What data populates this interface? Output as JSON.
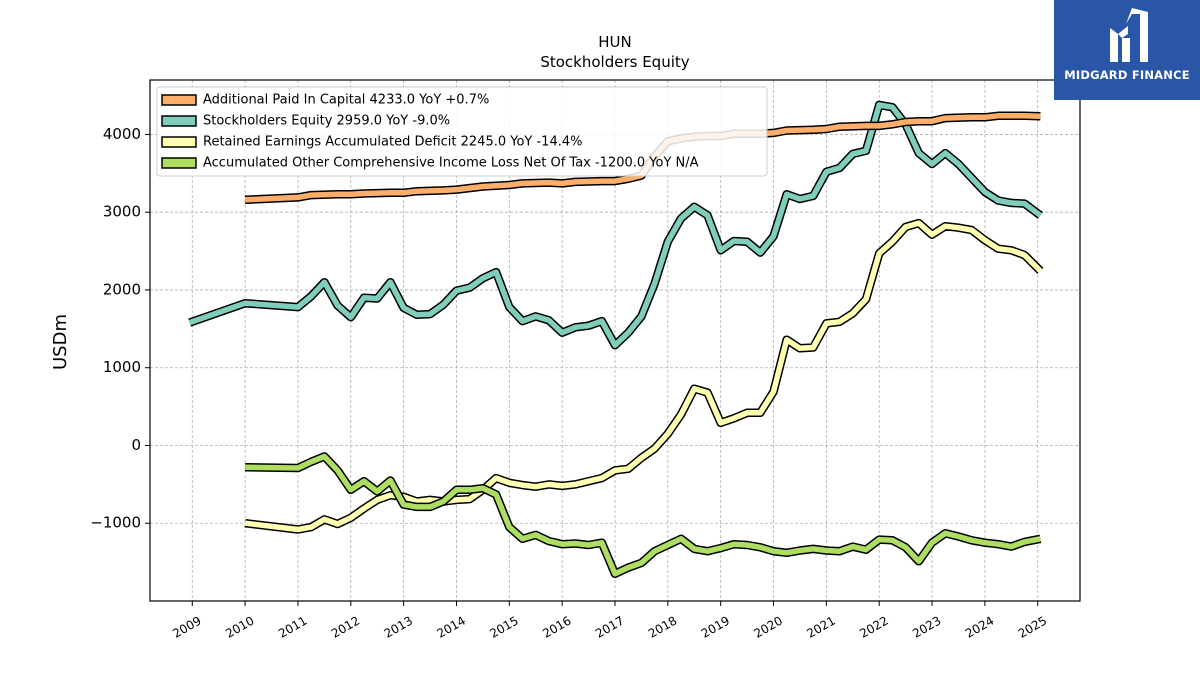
{
  "chart_data": {
    "type": "line",
    "title": "HUN",
    "subtitle": "Stockholders  Equity",
    "ylabel": "USDm",
    "xlabel": "",
    "ylim": [
      -2000,
      4700
    ],
    "xlim": [
      2008.2,
      2025.8
    ],
    "yticks": [
      -1000,
      0,
      1000,
      2000,
      3000,
      4000
    ],
    "xticks": [
      "2009",
      "2010",
      "2011",
      "2012",
      "2013",
      "2014",
      "2015",
      "2016",
      "2017",
      "2018",
      "2019",
      "2020",
      "2021",
      "2022",
      "2023",
      "2024",
      "2025"
    ],
    "grid": true,
    "legend_position": "top-left",
    "series": [
      {
        "name": "Additional Paid In Capital  4233.0 YoY +0.7%",
        "color": "#fdae6b",
        "points": [
          [
            2010.0,
            3160
          ],
          [
            2011.0,
            3190
          ],
          [
            2011.25,
            3220
          ],
          [
            2011.75,
            3230
          ],
          [
            2012.0,
            3230
          ],
          [
            2012.25,
            3240
          ],
          [
            2012.75,
            3250
          ],
          [
            2013.0,
            3250
          ],
          [
            2013.25,
            3270
          ],
          [
            2013.75,
            3280
          ],
          [
            2014.0,
            3290
          ],
          [
            2014.5,
            3330
          ],
          [
            2014.75,
            3340
          ],
          [
            2015.0,
            3350
          ],
          [
            2015.25,
            3370
          ],
          [
            2015.75,
            3380
          ],
          [
            2016.0,
            3370
          ],
          [
            2016.25,
            3390
          ],
          [
            2016.75,
            3400
          ],
          [
            2017.0,
            3400
          ],
          [
            2017.25,
            3430
          ],
          [
            2017.5,
            3470
          ],
          [
            2017.75,
            3720
          ],
          [
            2018.0,
            3910
          ],
          [
            2018.25,
            3950
          ],
          [
            2018.5,
            3970
          ],
          [
            2018.75,
            3980
          ],
          [
            2019.0,
            3980
          ],
          [
            2019.25,
            4010
          ],
          [
            2019.75,
            4010
          ],
          [
            2020.0,
            4020
          ],
          [
            2020.25,
            4050
          ],
          [
            2020.75,
            4060
          ],
          [
            2021.0,
            4070
          ],
          [
            2021.25,
            4100
          ],
          [
            2021.75,
            4110
          ],
          [
            2022.0,
            4110
          ],
          [
            2022.25,
            4130
          ],
          [
            2022.5,
            4160
          ],
          [
            2022.75,
            4170
          ],
          [
            2023.0,
            4170
          ],
          [
            2023.25,
            4210
          ],
          [
            2023.75,
            4220
          ],
          [
            2024.0,
            4220
          ],
          [
            2024.25,
            4240
          ],
          [
            2024.75,
            4240
          ],
          [
            2025.05,
            4233
          ]
        ]
      },
      {
        "name": "Stockholders Equity  2959.0 YoY -9.0%",
        "color": "#7fcdbb",
        "points": [
          [
            2008.95,
            1580
          ],
          [
            2010.0,
            1830
          ],
          [
            2011.0,
            1780
          ],
          [
            2011.25,
            1920
          ],
          [
            2011.5,
            2100
          ],
          [
            2011.75,
            1800
          ],
          [
            2012.0,
            1650
          ],
          [
            2012.25,
            1900
          ],
          [
            2012.5,
            1890
          ],
          [
            2012.75,
            2100
          ],
          [
            2013.0,
            1770
          ],
          [
            2013.25,
            1680
          ],
          [
            2013.5,
            1690
          ],
          [
            2013.75,
            1810
          ],
          [
            2014.0,
            1990
          ],
          [
            2014.25,
            2030
          ],
          [
            2014.5,
            2150
          ],
          [
            2014.75,
            2230
          ],
          [
            2015.0,
            1780
          ],
          [
            2015.25,
            1600
          ],
          [
            2015.5,
            1660
          ],
          [
            2015.75,
            1610
          ],
          [
            2016.0,
            1450
          ],
          [
            2016.25,
            1520
          ],
          [
            2016.5,
            1540
          ],
          [
            2016.75,
            1600
          ],
          [
            2017.0,
            1290
          ],
          [
            2017.25,
            1450
          ],
          [
            2017.5,
            1660
          ],
          [
            2017.75,
            2080
          ],
          [
            2018.0,
            2620
          ],
          [
            2018.25,
            2920
          ],
          [
            2018.5,
            3070
          ],
          [
            2018.75,
            2960
          ],
          [
            2019.0,
            2510
          ],
          [
            2019.25,
            2630
          ],
          [
            2019.5,
            2620
          ],
          [
            2019.75,
            2480
          ],
          [
            2020.0,
            2690
          ],
          [
            2020.25,
            3230
          ],
          [
            2020.5,
            3170
          ],
          [
            2020.75,
            3210
          ],
          [
            2021.0,
            3520
          ],
          [
            2021.25,
            3570
          ],
          [
            2021.5,
            3750
          ],
          [
            2021.75,
            3790
          ],
          [
            2022.0,
            4380
          ],
          [
            2022.25,
            4350
          ],
          [
            2022.5,
            4130
          ],
          [
            2022.75,
            3760
          ],
          [
            2023.0,
            3620
          ],
          [
            2023.25,
            3760
          ],
          [
            2023.5,
            3620
          ],
          [
            2023.75,
            3440
          ],
          [
            2024.0,
            3260
          ],
          [
            2024.25,
            3150
          ],
          [
            2024.5,
            3120
          ],
          [
            2024.75,
            3110
          ],
          [
            2025.05,
            2959
          ]
        ]
      },
      {
        "name": "Retained Earnings Accumulated Deficit  2245.0 YoY -14.4%",
        "color": "#ffffb2",
        "points": [
          [
            2010.0,
            -1000
          ],
          [
            2011.0,
            -1080
          ],
          [
            2011.25,
            -1050
          ],
          [
            2011.5,
            -950
          ],
          [
            2011.75,
            -1010
          ],
          [
            2012.0,
            -930
          ],
          [
            2012.25,
            -810
          ],
          [
            2012.5,
            -700
          ],
          [
            2012.75,
            -640
          ],
          [
            2013.0,
            -660
          ],
          [
            2013.25,
            -720
          ],
          [
            2013.5,
            -700
          ],
          [
            2013.75,
            -720
          ],
          [
            2014.0,
            -700
          ],
          [
            2014.25,
            -690
          ],
          [
            2014.5,
            -570
          ],
          [
            2014.75,
            -420
          ],
          [
            2015.0,
            -480
          ],
          [
            2015.25,
            -510
          ],
          [
            2015.5,
            -530
          ],
          [
            2015.75,
            -500
          ],
          [
            2016.0,
            -520
          ],
          [
            2016.25,
            -500
          ],
          [
            2016.5,
            -460
          ],
          [
            2016.75,
            -420
          ],
          [
            2017.0,
            -320
          ],
          [
            2017.25,
            -300
          ],
          [
            2017.5,
            -160
          ],
          [
            2017.75,
            -40
          ],
          [
            2018.0,
            150
          ],
          [
            2018.25,
            400
          ],
          [
            2018.5,
            730
          ],
          [
            2018.75,
            680
          ],
          [
            2019.0,
            290
          ],
          [
            2019.25,
            350
          ],
          [
            2019.5,
            420
          ],
          [
            2019.75,
            420
          ],
          [
            2020.0,
            690
          ],
          [
            2020.25,
            1360
          ],
          [
            2020.5,
            1250
          ],
          [
            2020.75,
            1260
          ],
          [
            2021.0,
            1570
          ],
          [
            2021.25,
            1590
          ],
          [
            2021.5,
            1700
          ],
          [
            2021.75,
            1880
          ],
          [
            2022.0,
            2470
          ],
          [
            2022.25,
            2620
          ],
          [
            2022.5,
            2810
          ],
          [
            2022.75,
            2860
          ],
          [
            2023.0,
            2710
          ],
          [
            2023.25,
            2820
          ],
          [
            2023.5,
            2800
          ],
          [
            2023.75,
            2770
          ],
          [
            2024.0,
            2640
          ],
          [
            2024.25,
            2530
          ],
          [
            2024.5,
            2510
          ],
          [
            2024.75,
            2450
          ],
          [
            2025.05,
            2245
          ]
        ]
      },
      {
        "name": "Accumulated Other Comprehensive Income Loss Net Of Tax  -1200.0 YoY N/A",
        "color": "#addd61",
        "points": [
          [
            2010.0,
            -280
          ],
          [
            2011.0,
            -290
          ],
          [
            2011.25,
            -210
          ],
          [
            2011.5,
            -140
          ],
          [
            2011.75,
            -320
          ],
          [
            2012.0,
            -570
          ],
          [
            2012.25,
            -460
          ],
          [
            2012.5,
            -590
          ],
          [
            2012.75,
            -450
          ],
          [
            2013.0,
            -760
          ],
          [
            2013.25,
            -790
          ],
          [
            2013.5,
            -790
          ],
          [
            2013.75,
            -720
          ],
          [
            2014.0,
            -570
          ],
          [
            2014.25,
            -570
          ],
          [
            2014.5,
            -550
          ],
          [
            2014.75,
            -630
          ],
          [
            2015.0,
            -1050
          ],
          [
            2015.25,
            -1200
          ],
          [
            2015.5,
            -1150
          ],
          [
            2015.75,
            -1230
          ],
          [
            2016.0,
            -1270
          ],
          [
            2016.25,
            -1260
          ],
          [
            2016.5,
            -1280
          ],
          [
            2016.75,
            -1250
          ],
          [
            2017.0,
            -1650
          ],
          [
            2017.25,
            -1570
          ],
          [
            2017.5,
            -1510
          ],
          [
            2017.75,
            -1360
          ],
          [
            2018.0,
            -1280
          ],
          [
            2018.25,
            -1200
          ],
          [
            2018.5,
            -1330
          ],
          [
            2018.75,
            -1360
          ],
          [
            2019.0,
            -1320
          ],
          [
            2019.25,
            -1270
          ],
          [
            2019.5,
            -1280
          ],
          [
            2019.75,
            -1310
          ],
          [
            2020.0,
            -1360
          ],
          [
            2020.25,
            -1380
          ],
          [
            2020.5,
            -1350
          ],
          [
            2020.75,
            -1330
          ],
          [
            2021.0,
            -1350
          ],
          [
            2021.25,
            -1360
          ],
          [
            2021.5,
            -1300
          ],
          [
            2021.75,
            -1340
          ],
          [
            2022.0,
            -1210
          ],
          [
            2022.25,
            -1220
          ],
          [
            2022.5,
            -1310
          ],
          [
            2022.75,
            -1490
          ],
          [
            2023.0,
            -1250
          ],
          [
            2023.25,
            -1130
          ],
          [
            2023.5,
            -1170
          ],
          [
            2023.75,
            -1220
          ],
          [
            2024.0,
            -1250
          ],
          [
            2024.25,
            -1270
          ],
          [
            2024.5,
            -1300
          ],
          [
            2024.75,
            -1240
          ],
          [
            2025.05,
            -1200
          ]
        ]
      }
    ]
  },
  "logo": {
    "text": "MIDGARD FINANCE",
    "background": "#2a56a8"
  }
}
